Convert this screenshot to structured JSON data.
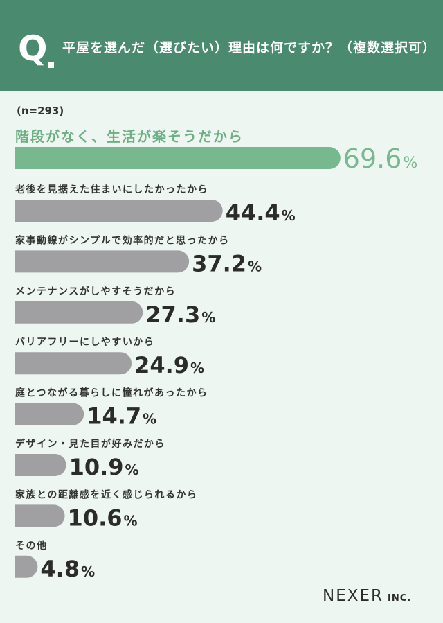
{
  "header": {
    "q_mark": "Q",
    "question": "平屋を選んだ（選びたい）理由は何ですか？（複数選択可）"
  },
  "sample_size": "(n=293)",
  "brand": {
    "name": "NEXER",
    "suffix": "INC."
  },
  "colors": {
    "header_bg": "#4a8b70",
    "highlight_bar": "#78b88e",
    "highlight_text": "#6db084",
    "bar": "#a0a0a3",
    "value_text": "#2b2b2b",
    "background": "#eef6f1"
  },
  "chart_data": {
    "type": "bar",
    "orientation": "horizontal",
    "unit": "%",
    "categories": [
      "階段がなく、生活が楽そうだから",
      "老後を見据えた住まいにしたかったから",
      "家事動線がシンプルで効率的だと思ったから",
      "メンテナンスがしやすそうだから",
      "バリアフリーにしやすいから",
      "庭とつながる暮らしに憧れがあったから",
      "デザイン・見た目が好みだから",
      "家族との距離感を近く感じられるから",
      "その他"
    ],
    "values": [
      69.6,
      44.4,
      37.2,
      27.3,
      24.9,
      14.7,
      10.9,
      10.6,
      4.8
    ],
    "value_labels": [
      "69.6",
      "44.4",
      "37.2",
      "27.3",
      "24.9",
      "14.7",
      "10.9",
      "10.6",
      "4.8"
    ],
    "highlight_index": 0,
    "xlim": [
      0,
      100
    ]
  }
}
